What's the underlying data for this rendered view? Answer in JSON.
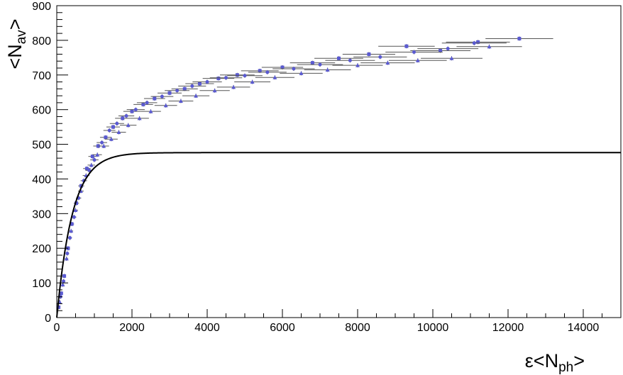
{
  "chart_data": {
    "type": "scatter",
    "title": "",
    "xlabel": {
      "main": "ε<N",
      "sub": "ph",
      "end": ">"
    },
    "ylabel": {
      "main": "<N",
      "sub": "av",
      "end": ">"
    },
    "xlim": [
      0,
      15000
    ],
    "ylim": [
      0,
      900
    ],
    "xticks": [
      "0",
      "2000",
      "4000",
      "6000",
      "8000",
      "10000",
      "12000",
      "14000"
    ],
    "yticks": [
      "0",
      "100",
      "200",
      "300",
      "400",
      "500",
      "600",
      "700",
      "800",
      "900"
    ],
    "grid": false,
    "legend": "none",
    "colors": {
      "points": "#5a5ad2",
      "errorbars": "#555555",
      "curve": "#000000"
    },
    "series": [
      {
        "marker": "square",
        "points": [
          [
            50,
            30,
            20
          ],
          [
            120,
            70,
            30
          ],
          [
            200,
            120,
            40
          ],
          [
            300,
            200,
            50
          ],
          [
            400,
            270,
            60
          ],
          [
            520,
            330,
            70
          ],
          [
            650,
            380,
            80
          ],
          [
            800,
            430,
            100
          ],
          [
            950,
            465,
            110
          ],
          [
            1100,
            495,
            130
          ],
          [
            1300,
            520,
            150
          ],
          [
            1500,
            550,
            180
          ],
          [
            1750,
            575,
            200
          ],
          [
            2000,
            595,
            230
          ],
          [
            2300,
            615,
            260
          ],
          [
            2600,
            632,
            280
          ],
          [
            3000,
            648,
            320
          ],
          [
            3400,
            660,
            350
          ],
          [
            3800,
            675,
            380
          ],
          [
            4300,
            690,
            420
          ],
          [
            4800,
            700,
            460
          ],
          [
            5400,
            712,
            500
          ],
          [
            6000,
            722,
            550
          ],
          [
            6800,
            735,
            600
          ],
          [
            7500,
            748,
            650
          ],
          [
            8300,
            760,
            700
          ],
          [
            9300,
            783,
            750
          ],
          [
            10200,
            770,
            800
          ],
          [
            11200,
            795,
            850
          ],
          [
            12300,
            805,
            900
          ]
        ]
      },
      {
        "marker": "triangle",
        "points": [
          [
            80,
            45,
            25
          ],
          [
            160,
            95,
            35
          ],
          [
            260,
            170,
            45
          ],
          [
            380,
            250,
            55
          ],
          [
            500,
            310,
            65
          ],
          [
            640,
            365,
            75
          ],
          [
            780,
            410,
            90
          ],
          [
            920,
            440,
            100
          ],
          [
            1080,
            470,
            120
          ],
          [
            1250,
            495,
            140
          ],
          [
            1450,
            515,
            170
          ],
          [
            1650,
            535,
            190
          ],
          [
            1900,
            555,
            220
          ],
          [
            2200,
            575,
            250
          ],
          [
            2500,
            595,
            270
          ],
          [
            2900,
            612,
            300
          ],
          [
            3300,
            625,
            330
          ],
          [
            3700,
            640,
            360
          ],
          [
            4200,
            655,
            400
          ],
          [
            4700,
            665,
            440
          ],
          [
            5200,
            680,
            480
          ],
          [
            5800,
            693,
            520
          ],
          [
            6500,
            705,
            570
          ],
          [
            7200,
            715,
            620
          ],
          [
            8000,
            728,
            670
          ],
          [
            8800,
            735,
            720
          ],
          [
            9600,
            742,
            770
          ],
          [
            10500,
            748,
            820
          ],
          [
            11500,
            782,
            870
          ]
        ]
      },
      {
        "marker": "circle",
        "points": [
          [
            100,
            60,
            25
          ],
          [
            180,
            105,
            35
          ],
          [
            280,
            185,
            45
          ],
          [
            350,
            230,
            55
          ],
          [
            460,
            290,
            60
          ],
          [
            580,
            345,
            70
          ],
          [
            720,
            395,
            85
          ],
          [
            860,
            425,
            95
          ],
          [
            1000,
            455,
            110
          ],
          [
            1200,
            505,
            140
          ],
          [
            1400,
            540,
            160
          ],
          [
            1600,
            560,
            190
          ],
          [
            1850,
            582,
            210
          ],
          [
            2100,
            600,
            240
          ],
          [
            2400,
            620,
            270
          ],
          [
            2800,
            638,
            300
          ],
          [
            3200,
            655,
            330
          ],
          [
            3600,
            668,
            370
          ],
          [
            4000,
            680,
            390
          ],
          [
            4500,
            692,
            430
          ],
          [
            5000,
            698,
            470
          ],
          [
            5600,
            708,
            510
          ],
          [
            6300,
            718,
            560
          ],
          [
            7000,
            730,
            610
          ],
          [
            7800,
            742,
            660
          ],
          [
            8600,
            752,
            710
          ],
          [
            9500,
            766,
            760
          ],
          [
            10400,
            776,
            810
          ],
          [
            11100,
            792,
            860
          ]
        ]
      }
    ],
    "fit_curve": {
      "function": "A*(1-exp(-x/k))",
      "A": 476,
      "k": 420,
      "x_range": [
        0,
        15000
      ]
    }
  }
}
